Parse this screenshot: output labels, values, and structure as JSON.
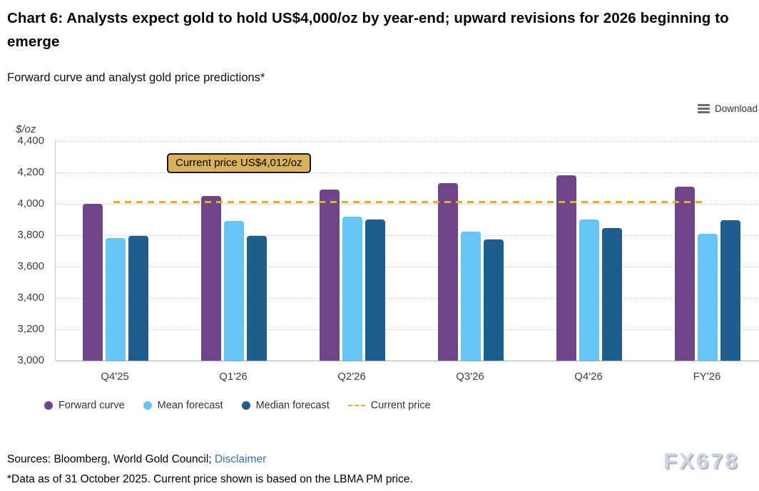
{
  "header": {
    "title": "Chart 6: Analysts expect gold to hold US$4,000/oz by year-end; upward revisions for 2026 beginning to emerge",
    "subtitle": "Forward curve and analyst gold price predictions*"
  },
  "toolbar": {
    "download_label": "Download"
  },
  "chart_data": {
    "type": "bar",
    "title": "Forward curve and analyst gold price predictions*",
    "unit_label": "$/oz",
    "categories": [
      "Q4'25",
      "Q1'26",
      "Q2'26",
      "Q3'26",
      "Q4'26",
      "FY'26"
    ],
    "series": [
      {
        "name": "Forward curve",
        "slug": "forward-curve",
        "color": "#6e4589",
        "values": [
          4000,
          4050,
          4090,
          4130,
          4180,
          4110
        ]
      },
      {
        "name": "Mean forecast",
        "slug": "mean-forecast",
        "color": "#65c6f5",
        "values": [
          3780,
          3890,
          3920,
          3825,
          3900,
          3810
        ]
      },
      {
        "name": "Median forecast",
        "slug": "median-forecast",
        "color": "#1f5d8c",
        "values": [
          3795,
          3795,
          3900,
          3775,
          3845,
          3895
        ]
      }
    ],
    "current_price": {
      "value": 4012,
      "annotation_label": "Current price US$4,012/oz",
      "legend_label": "Current price",
      "color": "#e9a83c"
    },
    "ylim": [
      3000,
      4400
    ],
    "y_ticks": [
      {
        "value": 4400,
        "label": "4,400"
      },
      {
        "value": 4200,
        "label": "4,200"
      },
      {
        "value": 4000,
        "label": "4,000"
      },
      {
        "value": 3800,
        "label": "3,800"
      },
      {
        "value": 3600,
        "label": "3,600"
      },
      {
        "value": 3400,
        "label": "3,400"
      },
      {
        "value": 3200,
        "label": "3,200"
      },
      {
        "value": 3000,
        "label": "3,000"
      }
    ],
    "grid": "horizontal-dotted",
    "legend_position": "bottom-left"
  },
  "footer": {
    "sources_prefix": "Sources: Bloomberg, World Gold Council; ",
    "disclaimer_label": "Disclaimer",
    "note": "*Data as of 31 October 2025. Current price shown is based on the LBMA PM price.",
    "watermark": "FX678"
  }
}
